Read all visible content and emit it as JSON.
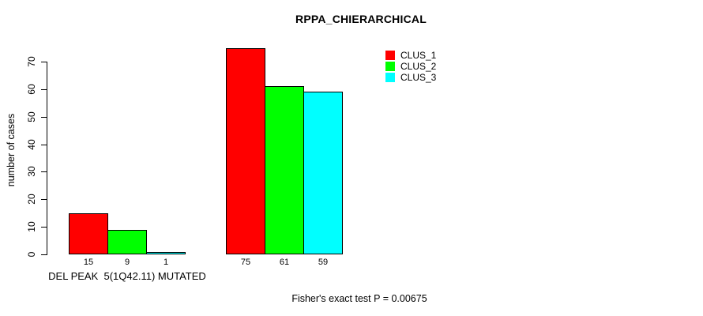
{
  "chart_data": {
    "type": "bar",
    "title": "RPPA_CHIERARCHICAL",
    "ylabel": "number of cases",
    "ylim": [
      0,
      70
    ],
    "yticks": [
      0,
      10,
      20,
      30,
      40,
      50,
      60,
      70
    ],
    "grid": false,
    "legend_position": "top-right",
    "categories": [
      "DEL PEAK  5(1Q42.11) MUTATED",
      ""
    ],
    "series": [
      {
        "name": "CLUS_1",
        "color": "#ff0000",
        "values": [
          15,
          75
        ]
      },
      {
        "name": "CLUS_2",
        "color": "#00ff00",
        "values": [
          9,
          61
        ]
      },
      {
        "name": "CLUS_3",
        "color": "#00ffff",
        "values": [
          1,
          59
        ]
      }
    ],
    "bar_labels": [
      [
        15,
        9,
        1
      ],
      [
        75,
        61,
        59
      ]
    ],
    "annotation": "Fisher's exact test P = 0.00675"
  }
}
